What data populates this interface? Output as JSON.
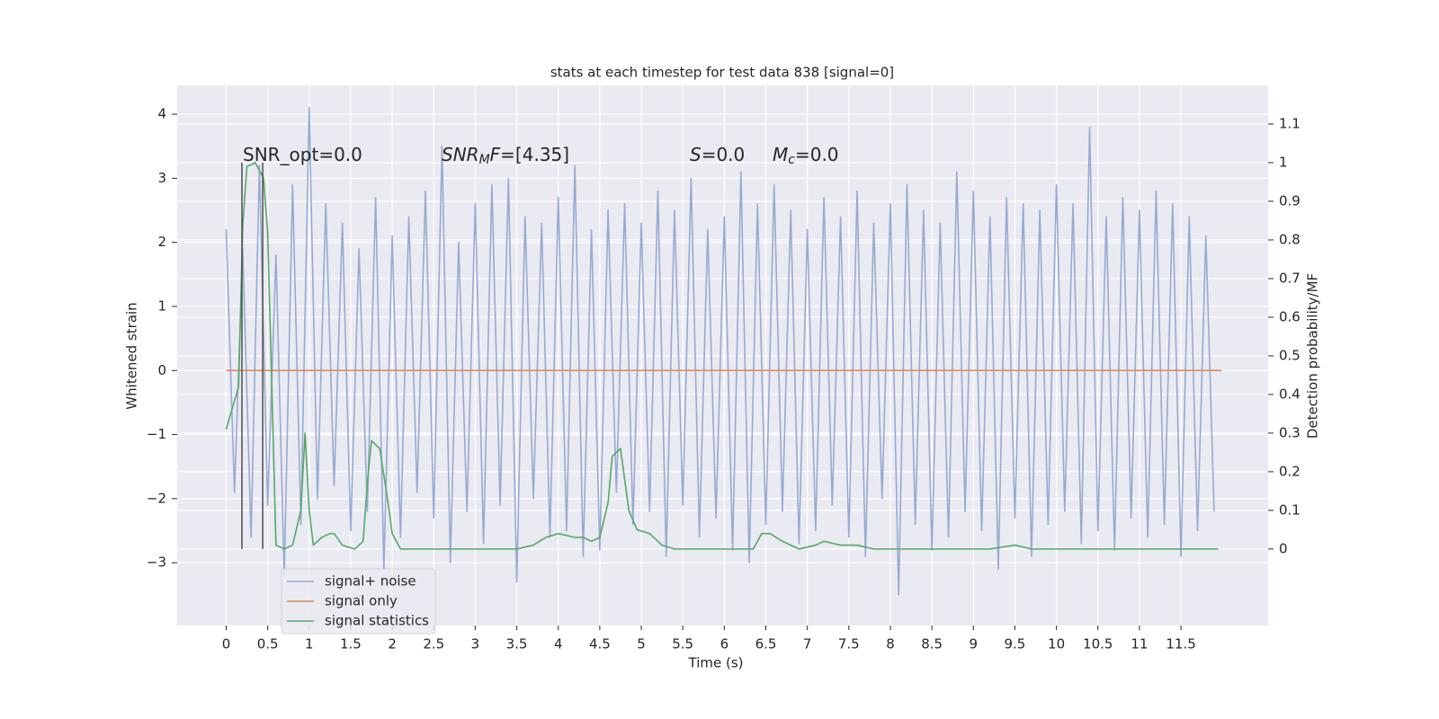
{
  "chart_data": {
    "type": "line",
    "title": "stats at each timestep for test data 838 [signal=0]",
    "xlabel": "Time (s)",
    "ylabel": "Whitened strain",
    "y2label": "Detection probability/MF",
    "xlim": [
      -0.59,
      12.55
    ],
    "ylim": [
      -3.98,
      4.45
    ],
    "y2lim": [
      -0.198,
      1.2
    ],
    "xticks": [
      0.0,
      0.5,
      1.0,
      1.5,
      2.0,
      2.5,
      3.0,
      3.5,
      4.0,
      4.5,
      5.0,
      5.5,
      6.0,
      6.5,
      7.0,
      7.5,
      8.0,
      8.5,
      9.0,
      9.5,
      10.0,
      10.5,
      11.0,
      11.5
    ],
    "yticks": [
      {
        "value": -3,
        "label": "−3"
      },
      {
        "value": -2,
        "label": "−2"
      },
      {
        "value": -1,
        "label": "−1"
      },
      0,
      1,
      2,
      3,
      4
    ],
    "y2ticks": [
      0.0,
      0.1,
      0.2,
      0.3,
      0.4,
      0.5,
      0.6,
      0.7,
      0.8,
      0.9,
      1.0,
      1.1
    ],
    "grid": true,
    "legend": "lower left",
    "annotations": [
      {
        "parts": [
          {
            "t": "SNR_opt=0.0",
            "i": false,
            "sub": false
          }
        ]
      },
      {
        "parts": [
          {
            "t": "SNR",
            "i": true,
            "sub": false
          },
          {
            "t": "M",
            "i": true,
            "sub": true
          },
          {
            "t": "F",
            "i": true,
            "sub": false
          },
          {
            "t": "=[4.35]",
            "i": false,
            "sub": false
          }
        ]
      },
      {
        "parts": [
          {
            "t": "S",
            "i": true,
            "sub": false
          },
          {
            "t": "=0.0",
            "i": false,
            "sub": false
          }
        ]
      },
      {
        "parts": [
          {
            "t": "M",
            "i": true,
            "sub": false
          },
          {
            "t": "c",
            "i": true,
            "sub": true
          },
          {
            "t": "=0.0",
            "i": false,
            "sub": false
          }
        ]
      }
    ],
    "vlines": {
      "x": [
        0.19,
        0.44
      ],
      "ymin": 0,
      "ymax": 1,
      "color": "#444444",
      "axis": "y2"
    },
    "series": [
      {
        "name": "signal+ noise",
        "color": "#98aad0",
        "axis": "y",
        "x": [
          0.0,
          0.1,
          0.2,
          0.3,
          0.4,
          0.5,
          0.6,
          0.7,
          0.8,
          0.9,
          1.0,
          1.1,
          1.2,
          1.3,
          1.4,
          1.5,
          1.6,
          1.7,
          1.8,
          1.9,
          2.0,
          2.1,
          2.2,
          2.3,
          2.4,
          2.5,
          2.6,
          2.7,
          2.8,
          2.9,
          3.0,
          3.1,
          3.2,
          3.3,
          3.4,
          3.5,
          3.6,
          3.7,
          3.8,
          3.9,
          4.0,
          4.1,
          4.2,
          4.3,
          4.4,
          4.5,
          4.6,
          4.7,
          4.8,
          4.9,
          5.0,
          5.1,
          5.2,
          5.3,
          5.4,
          5.5,
          5.6,
          5.7,
          5.8,
          5.9,
          6.0,
          6.1,
          6.2,
          6.3,
          6.4,
          6.5,
          6.6,
          6.7,
          6.8,
          6.9,
          7.0,
          7.1,
          7.2,
          7.3,
          7.4,
          7.5,
          7.6,
          7.7,
          7.8,
          7.9,
          8.0,
          8.1,
          8.2,
          8.3,
          8.4,
          8.5,
          8.6,
          8.7,
          8.8,
          8.9,
          9.0,
          9.1,
          9.2,
          9.3,
          9.4,
          9.5,
          9.6,
          9.7,
          9.8,
          9.9,
          10.0,
          10.1,
          10.2,
          10.3,
          10.4,
          10.5,
          10.6,
          10.7,
          10.8,
          10.9,
          11.0,
          11.1,
          11.2,
          11.3,
          11.4,
          11.5,
          11.6,
          11.7,
          11.8,
          11.9
        ],
        "values": [
          2.2,
          -1.9,
          1.9,
          -2.6,
          3.2,
          -2.1,
          1.8,
          -3.2,
          2.9,
          -2.4,
          4.1,
          -2.0,
          2.6,
          -1.8,
          2.3,
          -2.5,
          1.9,
          -2.2,
          2.7,
          -3.1,
          2.1,
          -2.6,
          2.4,
          -1.9,
          2.8,
          -2.3,
          3.5,
          -3.0,
          2.0,
          -2.2,
          2.6,
          -2.7,
          2.9,
          -2.1,
          3.0,
          -3.3,
          2.4,
          -2.0,
          2.3,
          -2.6,
          2.7,
          -2.5,
          3.2,
          -2.9,
          2.2,
          -2.8,
          2.5,
          -1.9,
          2.6,
          -2.4,
          2.3,
          -2.2,
          2.8,
          -2.9,
          2.5,
          -2.1,
          3.0,
          -2.6,
          2.2,
          -2.3,
          2.4,
          -2.8,
          3.1,
          -3.0,
          2.6,
          -2.4,
          2.9,
          -2.2,
          2.5,
          -2.7,
          2.2,
          -2.5,
          2.7,
          -2.1,
          2.4,
          -2.6,
          2.8,
          -2.9,
          2.3,
          -2.0,
          2.6,
          -3.5,
          2.9,
          -2.4,
          2.5,
          -2.8,
          2.3,
          -2.6,
          3.1,
          -2.2,
          2.8,
          -2.5,
          2.4,
          -3.1,
          2.7,
          -2.3,
          2.6,
          -2.9,
          2.5,
          -2.4,
          2.9,
          -2.2,
          2.6,
          -2.7,
          3.8,
          -2.5,
          2.4,
          -2.8,
          2.7,
          -2.3,
          2.5,
          -2.6,
          2.8,
          -2.4,
          2.6,
          -2.9,
          2.4,
          -2.5,
          2.1,
          -2.2
        ]
      },
      {
        "name": "signal only",
        "color": "#dd8452",
        "axis": "y",
        "x": [
          0.0,
          11.99
        ],
        "values": [
          0,
          0
        ]
      },
      {
        "name": "signal statistics",
        "color": "#55a868",
        "axis": "y2",
        "x": [
          0.0,
          0.15,
          0.2,
          0.25,
          0.35,
          0.45,
          0.5,
          0.55,
          0.6,
          0.7,
          0.8,
          0.9,
          0.95,
          1.0,
          1.05,
          1.15,
          1.25,
          1.3,
          1.4,
          1.55,
          1.65,
          1.7,
          1.75,
          1.85,
          1.95,
          2.0,
          2.1,
          2.5,
          3.0,
          3.5,
          3.7,
          3.85,
          4.0,
          4.2,
          4.3,
          4.4,
          4.5,
          4.6,
          4.65,
          4.75,
          4.85,
          4.95,
          5.1,
          5.25,
          5.4,
          6.0,
          6.35,
          6.45,
          6.55,
          6.7,
          6.9,
          7.1,
          7.2,
          7.4,
          7.6,
          7.8,
          8.5,
          9.2,
          9.5,
          9.7,
          10.5,
          11.0,
          11.3,
          11.5,
          11.95
        ],
        "values": [
          0.31,
          0.42,
          0.84,
          0.99,
          1.0,
          0.96,
          0.82,
          0.42,
          0.01,
          0.0,
          0.01,
          0.1,
          0.3,
          0.1,
          0.01,
          0.03,
          0.04,
          0.04,
          0.01,
          0.0,
          0.02,
          0.17,
          0.28,
          0.26,
          0.12,
          0.04,
          0.0,
          0.0,
          0.0,
          0.0,
          0.01,
          0.03,
          0.04,
          0.03,
          0.03,
          0.02,
          0.03,
          0.12,
          0.24,
          0.26,
          0.1,
          0.05,
          0.04,
          0.01,
          0.0,
          0.0,
          0.0,
          0.04,
          0.04,
          0.02,
          0.0,
          0.01,
          0.02,
          0.01,
          0.01,
          0.0,
          0.0,
          0.0,
          0.01,
          0.0,
          0.0,
          0.0,
          0.0,
          0.0,
          0.0
        ]
      }
    ]
  }
}
